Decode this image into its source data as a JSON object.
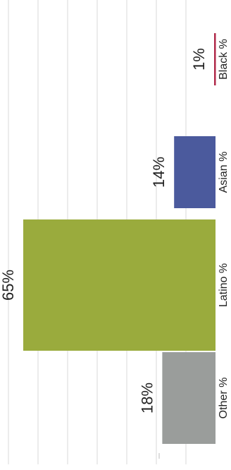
{
  "chart_data": {
    "type": "bar",
    "orientation": "vertical-rotated",
    "title": "",
    "xlabel": "",
    "ylabel": "",
    "categories": [
      "Other %",
      "Latino %",
      "Asian %",
      "Black %"
    ],
    "values": [
      18,
      65,
      14,
      1
    ],
    "value_labels": [
      "18%",
      "65%",
      "14%",
      "1%"
    ],
    "colors": [
      "#9a9d9b",
      "#9aab3d",
      "#4b5a9d",
      "#b0294a"
    ],
    "ylim": [
      0,
      70
    ],
    "grid": true
  }
}
